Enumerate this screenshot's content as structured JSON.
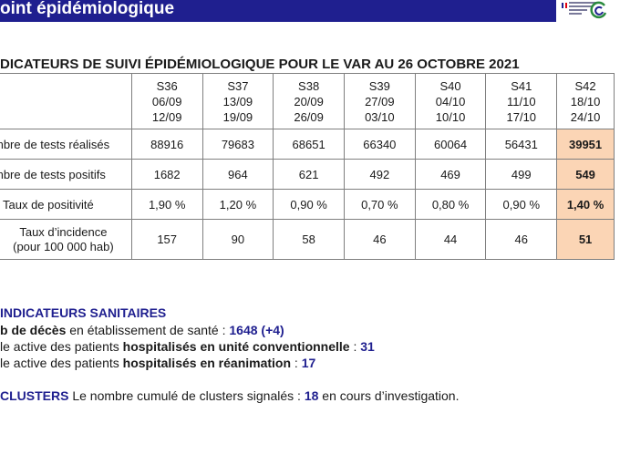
{
  "header": {
    "title": "oint épidémiologique",
    "colors": {
      "band": "#1f1f8f",
      "highlight": "#fbd5b5"
    }
  },
  "section_title": "DICATEURS DE SUIVI ÉPIDÉMIOLOGIQUE POUR LE VAR AU 26 OCTOBRE 2021",
  "table": {
    "columns": [
      {
        "week": "S36",
        "from": "06/09",
        "to": "12/09"
      },
      {
        "week": "S37",
        "from": "13/09",
        "to": "19/09"
      },
      {
        "week": "S38",
        "from": "20/09",
        "to": "26/09"
      },
      {
        "week": "S39",
        "from": "27/09",
        "to": "03/10"
      },
      {
        "week": "S40",
        "from": "04/10",
        "to": "10/10"
      },
      {
        "week": "S41",
        "from": "11/10",
        "to": "17/10"
      },
      {
        "week": "S42",
        "from": "18/10",
        "to": "24/10"
      }
    ],
    "rows": [
      {
        "label": "mbre de tests réalisés",
        "values": [
          "88916",
          "79683",
          "68651",
          "66340",
          "60064",
          "56431",
          "39951"
        ]
      },
      {
        "label": "mbre de tests positifs",
        "values": [
          "1682",
          "964",
          "621",
          "492",
          "469",
          "499",
          "549"
        ]
      },
      {
        "label": "Taux de positivité",
        "values": [
          "1,90 %",
          "1,20 %",
          "0,90 %",
          "0,70 %",
          "0,80 %",
          "0,90 %",
          "1,40 %"
        ]
      },
      {
        "label_line1": "Taux d’incidence",
        "label_line2": "(pour 100 000 hab)",
        "values": [
          "157",
          "90",
          "58",
          "46",
          "44",
          "46",
          "51"
        ]
      }
    ]
  },
  "sanitary": {
    "title": "INDICATEURS SANITAIRES",
    "deaths": {
      "prefix": "b de décès",
      "text": " en établissement de santé : ",
      "value": "1648 (+4)"
    },
    "conv": {
      "prefix": "le active des patients ",
      "bold": "hospitalisés en unité conventionnelle",
      "sep": " : ",
      "value": "31"
    },
    "rea": {
      "prefix": "le active des patients ",
      "bold": "hospitalisés en réanimation",
      "sep": " : ",
      "value": "17"
    }
  },
  "clusters": {
    "label": "CLUSTERS",
    "text": " Le nombre cumulé de clusters signalés : ",
    "value": "18",
    "suffix": " en cours d’investigation."
  }
}
